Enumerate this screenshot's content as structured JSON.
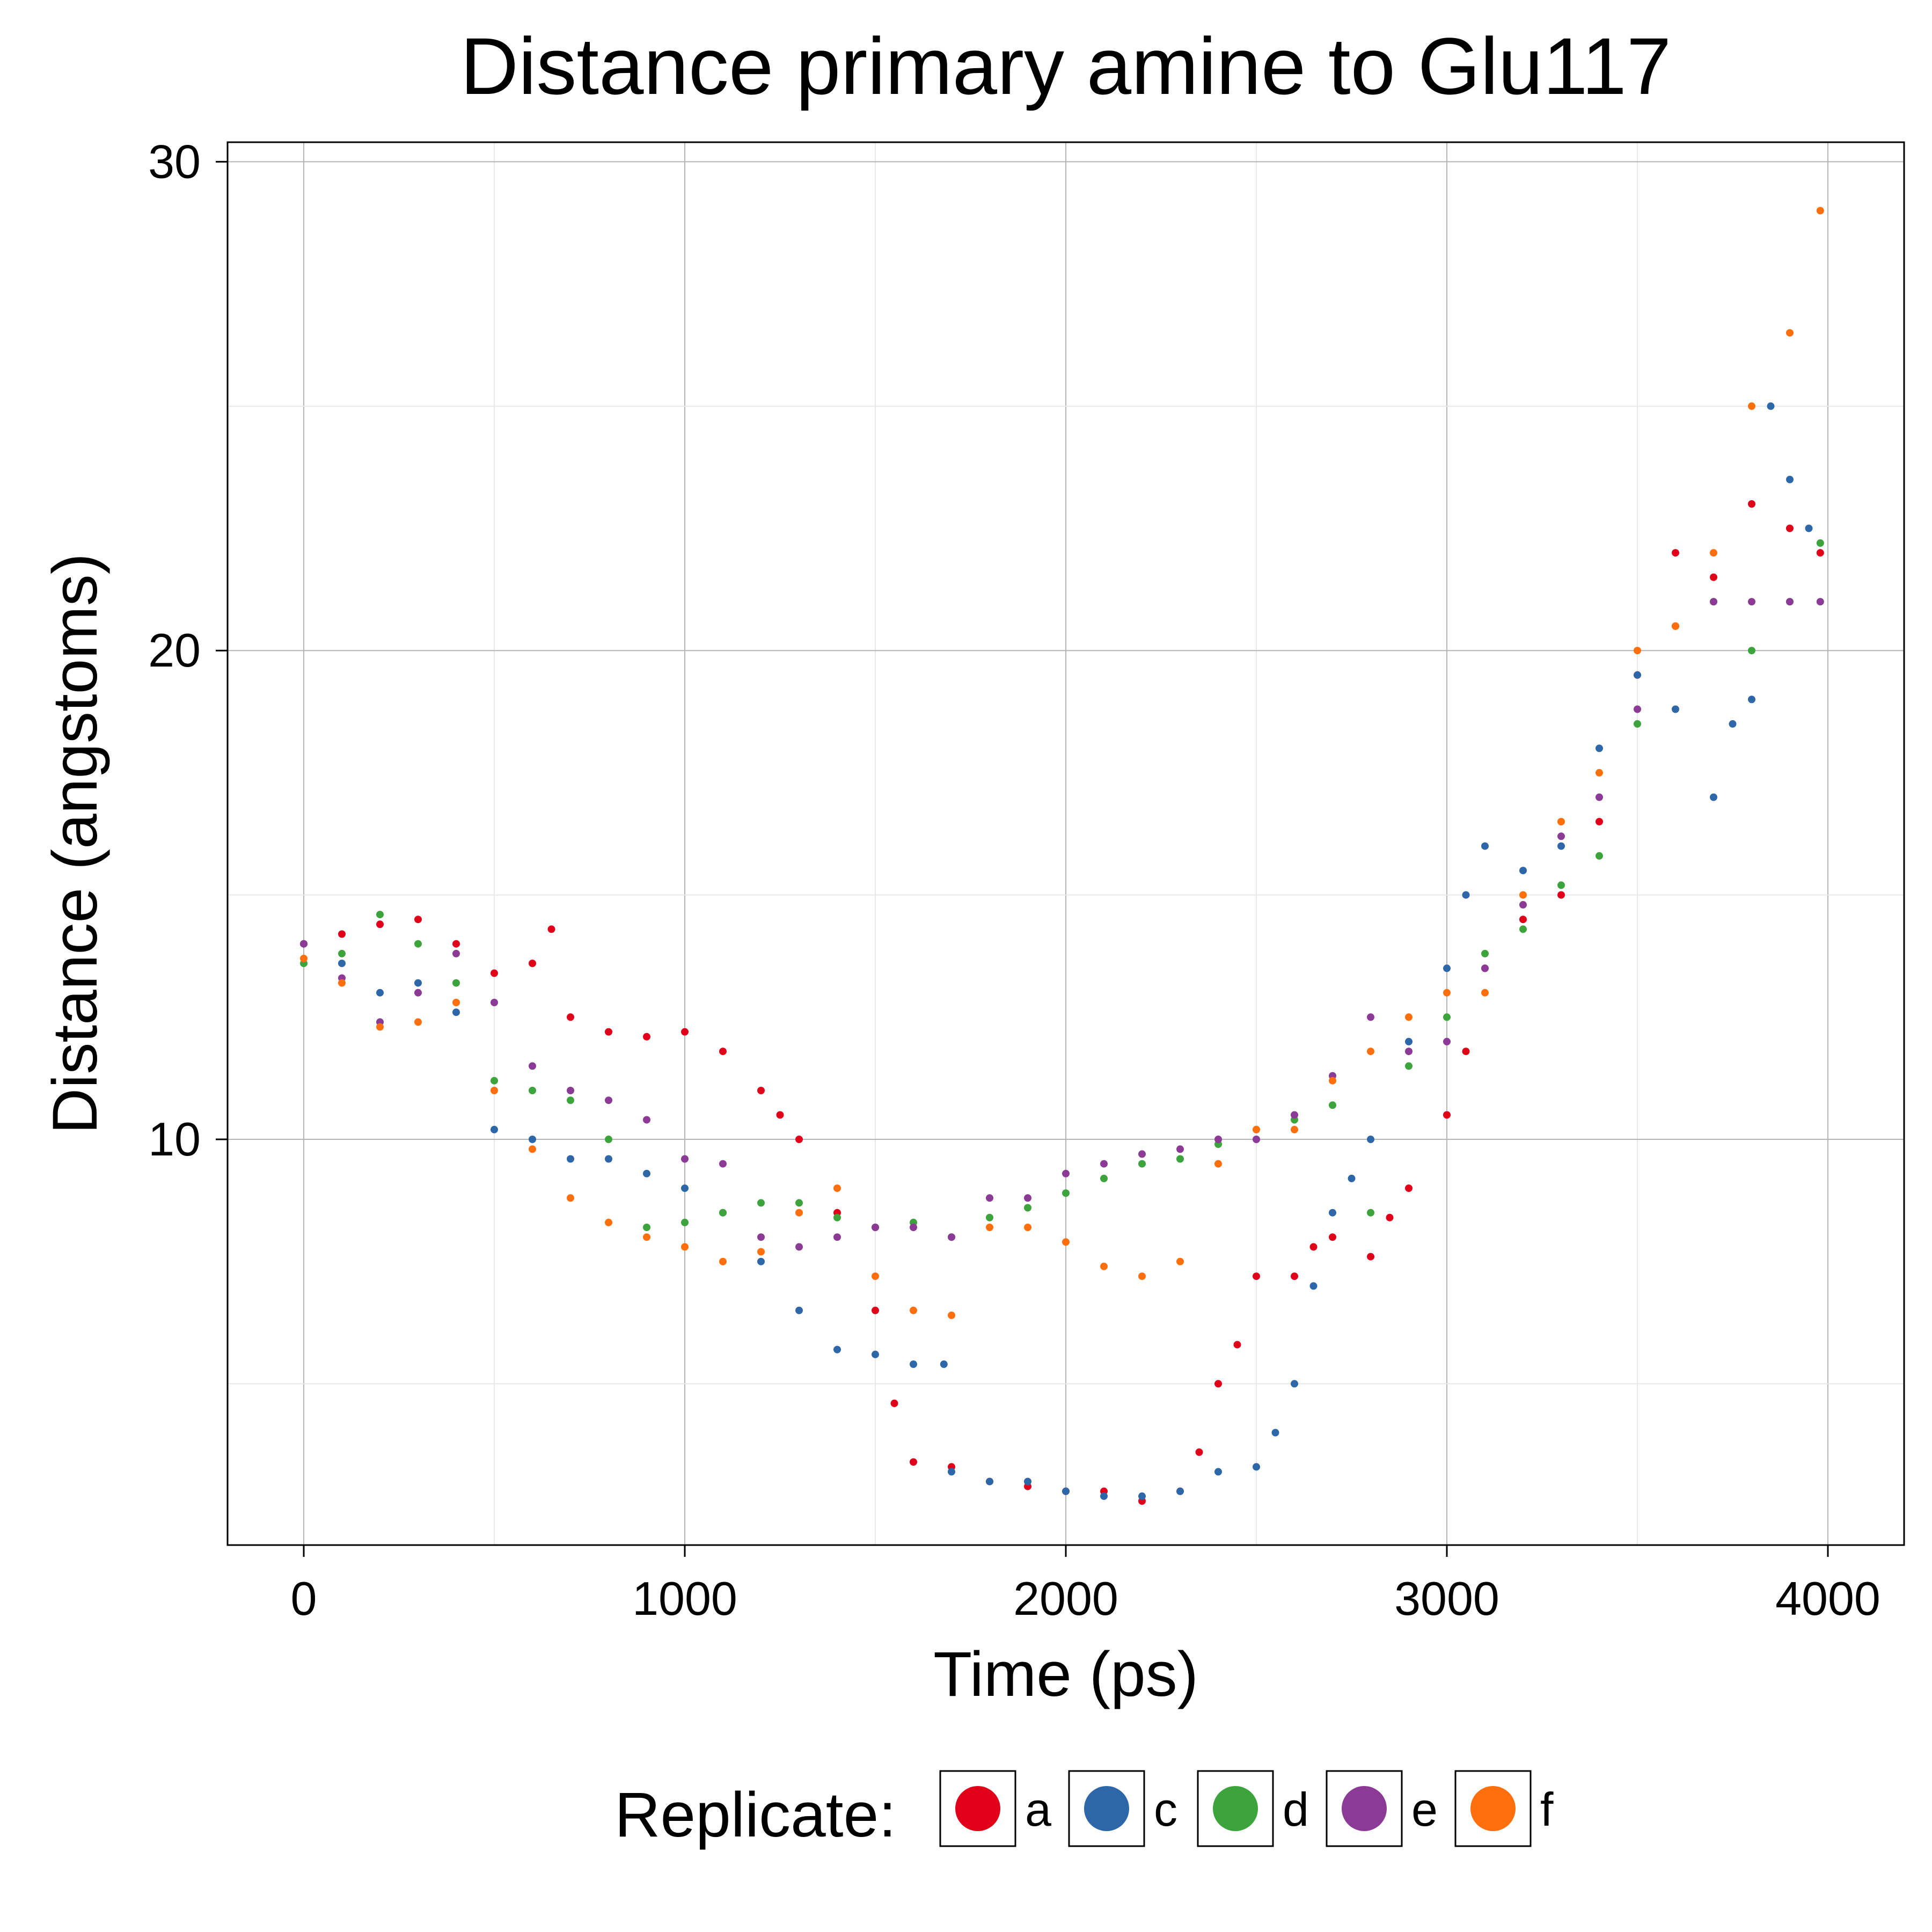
{
  "chart_data": {
    "type": "scatter",
    "title": "Distance primary amine to Glu117",
    "xlabel": "Time (ps)",
    "ylabel": "Distance (angstoms)",
    "xlim": [
      -200,
      4200
    ],
    "ylim": [
      1.7,
      30.4
    ],
    "xticks": [
      0,
      1000,
      2000,
      3000,
      4000
    ],
    "yticks": [
      10,
      20,
      30
    ],
    "grid": true,
    "legend": {
      "title": "Replicate:",
      "position": "bottom"
    },
    "series": [
      {
        "name": "a",
        "color": "#E0001A",
        "points": [
          [
            0,
            14.0
          ],
          [
            100,
            14.2
          ],
          [
            200,
            14.4
          ],
          [
            300,
            14.5
          ],
          [
            400,
            14.0
          ],
          [
            500,
            13.4
          ],
          [
            600,
            13.6
          ],
          [
            650,
            14.3
          ],
          [
            700,
            12.5
          ],
          [
            800,
            12.2
          ],
          [
            900,
            12.1
          ],
          [
            1000,
            12.2
          ],
          [
            1100,
            11.8
          ],
          [
            1200,
            11.0
          ],
          [
            1250,
            10.5
          ],
          [
            1300,
            10.0
          ],
          [
            1400,
            8.5
          ],
          [
            1500,
            6.5
          ],
          [
            1550,
            4.6
          ],
          [
            1600,
            3.4
          ],
          [
            1700,
            3.3
          ],
          [
            1800,
            3.0
          ],
          [
            1900,
            2.9
          ],
          [
            2000,
            2.8
          ],
          [
            2100,
            2.8
          ],
          [
            2200,
            2.6
          ],
          [
            2300,
            2.8
          ],
          [
            2350,
            3.6
          ],
          [
            2400,
            5.0
          ],
          [
            2450,
            5.8
          ],
          [
            2500,
            7.2
          ],
          [
            2600,
            7.2
          ],
          [
            2650,
            7.8
          ],
          [
            2700,
            8.0
          ],
          [
            2800,
            7.6
          ],
          [
            2850,
            8.4
          ],
          [
            2900,
            9.0
          ],
          [
            3000,
            10.5
          ],
          [
            3050,
            11.8
          ],
          [
            3100,
            13.5
          ],
          [
            3200,
            14.5
          ],
          [
            3300,
            15.0
          ],
          [
            3400,
            16.5
          ],
          [
            3500,
            19.5
          ],
          [
            3600,
            22.0
          ],
          [
            3700,
            21.5
          ],
          [
            3800,
            23.0
          ],
          [
            3900,
            22.5
          ],
          [
            3980,
            22.0
          ]
        ]
      },
      {
        "name": "c",
        "color": "#2E67A8",
        "points": [
          [
            0,
            14.0
          ],
          [
            100,
            13.6
          ],
          [
            200,
            13.0
          ],
          [
            300,
            13.2
          ],
          [
            400,
            12.6
          ],
          [
            500,
            10.2
          ],
          [
            600,
            10.0
          ],
          [
            700,
            9.6
          ],
          [
            800,
            9.6
          ],
          [
            900,
            9.3
          ],
          [
            1000,
            9.0
          ],
          [
            1100,
            8.5
          ],
          [
            1200,
            7.5
          ],
          [
            1300,
            6.5
          ],
          [
            1400,
            5.7
          ],
          [
            1500,
            5.6
          ],
          [
            1600,
            5.4
          ],
          [
            1680,
            5.4
          ],
          [
            1700,
            3.2
          ],
          [
            1800,
            3.0
          ],
          [
            1900,
            3.0
          ],
          [
            2000,
            2.8
          ],
          [
            2100,
            2.7
          ],
          [
            2200,
            2.7
          ],
          [
            2300,
            2.8
          ],
          [
            2400,
            3.2
          ],
          [
            2500,
            3.3
          ],
          [
            2550,
            4.0
          ],
          [
            2600,
            5.0
          ],
          [
            2650,
            7.0
          ],
          [
            2700,
            8.5
          ],
          [
            2750,
            9.2
          ],
          [
            2800,
            10.0
          ],
          [
            2900,
            12.0
          ],
          [
            3000,
            13.5
          ],
          [
            3050,
            15.0
          ],
          [
            3100,
            16.0
          ],
          [
            3200,
            15.5
          ],
          [
            3300,
            16.0
          ],
          [
            3400,
            18.0
          ],
          [
            3500,
            19.5
          ],
          [
            3600,
            18.8
          ],
          [
            3700,
            17.0
          ],
          [
            3750,
            18.5
          ],
          [
            3800,
            19.0
          ],
          [
            3850,
            25.0
          ],
          [
            3900,
            23.5
          ],
          [
            3950,
            22.5
          ]
        ]
      },
      {
        "name": "d",
        "color": "#3DA33C",
        "points": [
          [
            0,
            13.6
          ],
          [
            100,
            13.8
          ],
          [
            200,
            14.6
          ],
          [
            300,
            14.0
          ],
          [
            400,
            13.2
          ],
          [
            500,
            11.2
          ],
          [
            600,
            11.0
          ],
          [
            700,
            10.8
          ],
          [
            800,
            10.0
          ],
          [
            900,
            8.2
          ],
          [
            1000,
            8.3
          ],
          [
            1100,
            8.5
          ],
          [
            1200,
            8.7
          ],
          [
            1300,
            8.7
          ],
          [
            1400,
            8.4
          ],
          [
            1500,
            8.2
          ],
          [
            1600,
            8.3
          ],
          [
            1700,
            8.0
          ],
          [
            1800,
            8.4
          ],
          [
            1900,
            8.6
          ],
          [
            2000,
            8.9
          ],
          [
            2100,
            9.2
          ],
          [
            2200,
            9.5
          ],
          [
            2300,
            9.6
          ],
          [
            2400,
            9.9
          ],
          [
            2500,
            10.2
          ],
          [
            2600,
            10.4
          ],
          [
            2700,
            10.7
          ],
          [
            2800,
            8.5
          ],
          [
            2900,
            11.5
          ],
          [
            3000,
            12.5
          ],
          [
            3100,
            13.8
          ],
          [
            3200,
            14.3
          ],
          [
            3300,
            15.2
          ],
          [
            3400,
            15.8
          ],
          [
            3500,
            18.5
          ],
          [
            3600,
            20.5
          ],
          [
            3700,
            21.0
          ],
          [
            3800,
            20.0
          ],
          [
            3900,
            21.0
          ],
          [
            3980,
            22.2
          ]
        ]
      },
      {
        "name": "e",
        "color": "#8B3A96",
        "points": [
          [
            0,
            14.0
          ],
          [
            100,
            13.3
          ],
          [
            200,
            12.4
          ],
          [
            300,
            13.0
          ],
          [
            400,
            13.8
          ],
          [
            500,
            12.8
          ],
          [
            600,
            11.5
          ],
          [
            700,
            11.0
          ],
          [
            800,
            10.8
          ],
          [
            900,
            10.4
          ],
          [
            1000,
            9.6
          ],
          [
            1100,
            9.5
          ],
          [
            1200,
            8.0
          ],
          [
            1300,
            7.8
          ],
          [
            1400,
            8.0
          ],
          [
            1500,
            8.2
          ],
          [
            1600,
            8.2
          ],
          [
            1700,
            8.0
          ],
          [
            1800,
            8.8
          ],
          [
            1900,
            8.8
          ],
          [
            2000,
            9.3
          ],
          [
            2100,
            9.5
          ],
          [
            2200,
            9.7
          ],
          [
            2300,
            9.8
          ],
          [
            2400,
            10.0
          ],
          [
            2500,
            10.0
          ],
          [
            2600,
            10.5
          ],
          [
            2700,
            11.3
          ],
          [
            2800,
            12.5
          ],
          [
            2900,
            11.8
          ],
          [
            3000,
            12.0
          ],
          [
            3100,
            13.5
          ],
          [
            3200,
            14.8
          ],
          [
            3300,
            16.2
          ],
          [
            3400,
            17.0
          ],
          [
            3500,
            18.8
          ],
          [
            3600,
            20.5
          ],
          [
            3700,
            21.0
          ],
          [
            3800,
            21.0
          ],
          [
            3900,
            21.0
          ],
          [
            3980,
            21.0
          ]
        ]
      },
      {
        "name": "f",
        "color": "#FF6F0E",
        "points": [
          [
            0,
            13.7
          ],
          [
            100,
            13.2
          ],
          [
            200,
            12.3
          ],
          [
            300,
            12.4
          ],
          [
            400,
            12.8
          ],
          [
            500,
            11.0
          ],
          [
            600,
            9.8
          ],
          [
            700,
            8.8
          ],
          [
            800,
            8.3
          ],
          [
            900,
            8.0
          ],
          [
            1000,
            7.8
          ],
          [
            1100,
            7.5
          ],
          [
            1200,
            7.7
          ],
          [
            1300,
            8.5
          ],
          [
            1400,
            9.0
          ],
          [
            1500,
            7.2
          ],
          [
            1600,
            6.5
          ],
          [
            1700,
            6.4
          ],
          [
            1800,
            8.2
          ],
          [
            1900,
            8.2
          ],
          [
            2000,
            7.9
          ],
          [
            2100,
            7.4
          ],
          [
            2200,
            7.2
          ],
          [
            2300,
            7.5
          ],
          [
            2400,
            9.5
          ],
          [
            2500,
            10.2
          ],
          [
            2600,
            10.2
          ],
          [
            2700,
            11.2
          ],
          [
            2800,
            11.8
          ],
          [
            2900,
            12.5
          ],
          [
            3000,
            13.0
          ],
          [
            3100,
            13.0
          ],
          [
            3200,
            15.0
          ],
          [
            3300,
            16.5
          ],
          [
            3400,
            17.5
          ],
          [
            3500,
            20.0
          ],
          [
            3600,
            20.5
          ],
          [
            3700,
            22.0
          ],
          [
            3800,
            25.0
          ],
          [
            3900,
            26.5
          ],
          [
            3980,
            29.0
          ]
        ]
      }
    ]
  }
}
